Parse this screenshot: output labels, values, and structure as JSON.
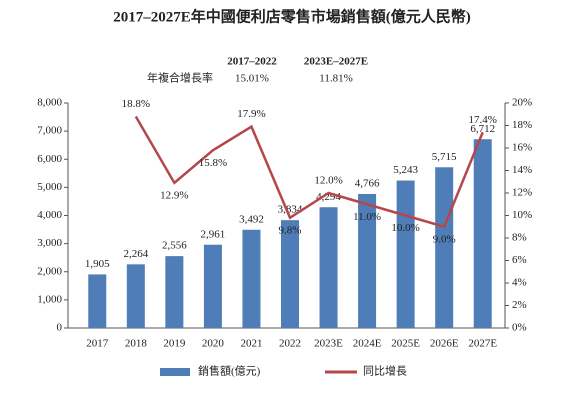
{
  "chart_data": {
    "type": "bar_line",
    "title": "2017–2027E年中國便利店零售市場銷售額(億元人民幣)",
    "cagr": {
      "periods": [
        "2017–2022",
        "2023E–2027E"
      ],
      "label": "年複合增長率",
      "values": [
        "15.01%",
        "11.81%"
      ]
    },
    "categories": [
      "2017",
      "2018",
      "2019",
      "2020",
      "2021",
      "2022",
      "2023E",
      "2024E",
      "2025E",
      "2026E",
      "2027E"
    ],
    "series": [
      {
        "name": "銷售額(億元)",
        "type": "bar",
        "color": "#4f7db8",
        "values": [
          1905,
          2264,
          2556,
          2961,
          3492,
          3834,
          4294,
          4766,
          5243,
          5715,
          6712
        ],
        "value_labels": [
          "1,905",
          "2,264",
          "2,556",
          "2,961",
          "3,492",
          "3,834",
          "4,294",
          "4,766",
          "5,243",
          "5,715",
          "6,712"
        ]
      },
      {
        "name": "同比增長",
        "type": "line",
        "axis": "y2",
        "color": "#b5474b",
        "values": [
          null,
          18.8,
          12.9,
          15.8,
          17.9,
          9.8,
          12.0,
          11.0,
          10.0,
          9.0,
          17.4
        ],
        "value_labels": [
          null,
          "18.8%",
          "12.9%",
          "15.8%",
          "17.9%",
          "9.8%",
          "12.0%",
          "11.0%",
          "10.0%",
          "9.0%",
          "17.4%"
        ]
      }
    ],
    "ylim": [
      0,
      8000
    ],
    "yticks": [
      0,
      {
        "value": 1000,
        "label": "1,000"
      },
      {
        "value": 2000,
        "label": "2,000"
      },
      {
        "value": 3000,
        "label": "3,000"
      },
      {
        "value": 4000,
        "label": "4,000"
      },
      {
        "value": 5000,
        "label": "5,000"
      },
      {
        "value": 6000,
        "label": "6,000"
      },
      {
        "value": 7000,
        "label": "7,000"
      },
      {
        "value": 8000,
        "label": "8,000"
      }
    ],
    "y2lim": [
      0,
      20
    ],
    "y2ticks": [
      {
        "value": 0,
        "label": "0%"
      },
      {
        "value": 2,
        "label": "2%"
      },
      {
        "value": 4,
        "label": "4%"
      },
      {
        "value": 6,
        "label": "6%"
      },
      {
        "value": 8,
        "label": "8%"
      },
      {
        "value": 10,
        "label": "10%"
      },
      {
        "value": 12,
        "label": "12%"
      },
      {
        "value": 14,
        "label": "14%"
      },
      {
        "value": 16,
        "label": "16%"
      },
      {
        "value": 18,
        "label": "18%"
      },
      {
        "value": 20,
        "label": "20%"
      }
    ],
    "grid": false,
    "legend": "bottom"
  }
}
